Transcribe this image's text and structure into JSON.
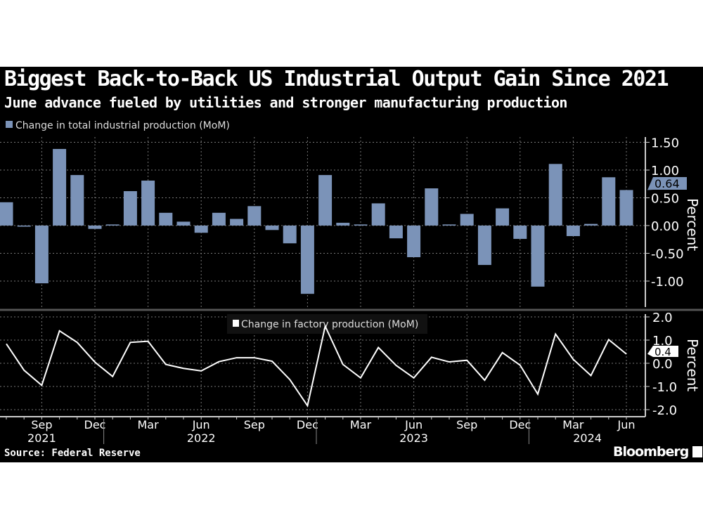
{
  "title": "Biggest Back-to-Back US Industrial Output Gain Since 2021",
  "subtitle": "June advance fueled by utilities and stronger manufacturing production",
  "source": "Source: Federal Reserve",
  "logo": "Bloomberg",
  "colors": {
    "background": "#000000",
    "bars": "#7b93b8",
    "line": "#ffffff"
  },
  "x_months": [
    "Jul 2021",
    "Aug 2021",
    "Sep 2021",
    "Oct 2021",
    "Nov 2021",
    "Dec 2021",
    "Jan 2022",
    "Feb 2022",
    "Mar 2022",
    "Apr 2022",
    "May 2022",
    "Jun 2022",
    "Jul 2022",
    "Aug 2022",
    "Sep 2022",
    "Oct 2022",
    "Nov 2022",
    "Dec 2022",
    "Jan 2023",
    "Feb 2023",
    "Mar 2023",
    "Apr 2023",
    "May 2023",
    "Jun 2023",
    "Jul 2023",
    "Aug 2023",
    "Sep 2023",
    "Oct 2023",
    "Nov 2023",
    "Dec 2023",
    "Jan 2024",
    "Feb 2024",
    "Mar 2024",
    "Apr 2024",
    "May 2024",
    "Jun 2024"
  ],
  "x_tick_labels": [
    {
      "label": "Sep",
      "index": 2
    },
    {
      "label": "Dec",
      "index": 5
    },
    {
      "label": "Mar",
      "index": 8
    },
    {
      "label": "Jun",
      "index": 11
    },
    {
      "label": "Sep",
      "index": 14
    },
    {
      "label": "Dec",
      "index": 17
    },
    {
      "label": "Mar",
      "index": 20
    },
    {
      "label": "Jun",
      "index": 23
    },
    {
      "label": "Sep",
      "index": 26
    },
    {
      "label": "Dec",
      "index": 29
    },
    {
      "label": "Mar",
      "index": 32
    },
    {
      "label": "Jun",
      "index": 35
    }
  ],
  "x_year_labels": [
    {
      "label": "2021",
      "index": 2
    },
    {
      "label": "2022",
      "index": 11
    },
    {
      "label": "2023",
      "index": 23
    },
    {
      "label": "2024",
      "index": 33
    }
  ],
  "chart_data": [
    {
      "type": "bar",
      "legend": "Change in total industrial production (MoM)",
      "ylabel": "Percent",
      "ylim": [
        -1.5,
        1.6
      ],
      "yticks": [
        "1.50",
        "1.00",
        "0.50",
        "0.00",
        "-0.50",
        "-1.00"
      ],
      "ytick_values": [
        1.5,
        1,
        0.5,
        0,
        -0.5,
        -1
      ],
      "last_value_label": "0.64",
      "grid": true,
      "values": [
        0.42,
        -0.02,
        -1.04,
        1.38,
        0.91,
        -0.06,
        0.02,
        0.62,
        0.81,
        0.23,
        0.07,
        -0.13,
        0.23,
        0.12,
        0.35,
        -0.08,
        -0.32,
        -1.23,
        0.91,
        0.05,
        0.02,
        0.4,
        -0.23,
        -0.57,
        0.67,
        0.02,
        0.21,
        -0.71,
        0.31,
        -0.24,
        -1.1,
        1.11,
        -0.19,
        0.03,
        0.87,
        0.64
      ]
    },
    {
      "type": "line",
      "legend": "Change in factory production (MoM)",
      "ylabel": "Percent",
      "ylim": [
        -2.2,
        2.2
      ],
      "yticks": [
        "2.0",
        "1.0",
        "0.0",
        "-1.0",
        "-2.0"
      ],
      "ytick_values": [
        2,
        1,
        0,
        -1,
        -2
      ],
      "last_value_label": "0.4",
      "grid": true,
      "values": [
        0.84,
        -0.3,
        -0.95,
        1.4,
        0.9,
        0.05,
        -0.57,
        0.9,
        0.95,
        -0.05,
        -0.22,
        -0.33,
        0.07,
        0.24,
        0.24,
        0.09,
        -0.7,
        -1.83,
        1.6,
        -0.05,
        -0.63,
        0.68,
        -0.09,
        -0.63,
        0.26,
        0.06,
        0.13,
        -0.73,
        0.46,
        -0.08,
        -1.33,
        1.26,
        0.17,
        -0.53,
        1.02,
        0.4
      ]
    }
  ]
}
